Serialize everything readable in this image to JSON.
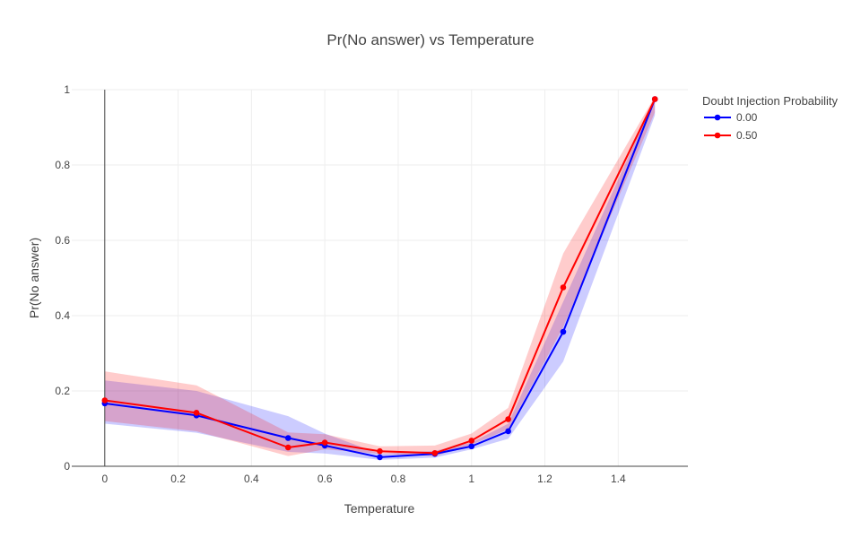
{
  "chart_data": {
    "type": "line",
    "title": "Pr(No answer) vs Temperature",
    "xlabel": "Temperature",
    "ylabel": "Pr(No answer)",
    "xlim": [
      -0.09,
      1.59
    ],
    "ylim": [
      0,
      1
    ],
    "x_ticks": [
      0,
      0.2,
      0.4,
      0.6,
      0.8,
      1,
      1.2,
      1.4
    ],
    "x_tick_labels": [
      "0",
      "0.2",
      "0.4",
      "0.6",
      "0.8",
      "1",
      "1.2",
      "1.4"
    ],
    "y_ticks": [
      0,
      0.2,
      0.4,
      0.6,
      0.8,
      1
    ],
    "y_tick_labels": [
      "0",
      "0.2",
      "0.4",
      "0.6",
      "0.8",
      "1"
    ],
    "grid": true,
    "legend": {
      "title": "Doubt Injection Probability",
      "placement": "top-right-outside"
    },
    "series": [
      {
        "name": "0.00",
        "color": "#0000ff",
        "band_color": "rgba(0,0,255,0.2)",
        "x": [
          0,
          0.25,
          0.5,
          0.6,
          0.75,
          0.9,
          1.0,
          1.1,
          1.25,
          1.5
        ],
        "y": [
          0.167,
          0.135,
          0.075,
          0.055,
          0.024,
          0.033,
          0.053,
          0.093,
          0.357,
          0.975
        ],
        "y_lower": [
          0.113,
          0.089,
          0.038,
          0.034,
          0.017,
          0.023,
          0.045,
          0.073,
          0.278,
          0.932
        ],
        "y_upper": [
          0.228,
          0.2,
          0.133,
          0.087,
          0.033,
          0.041,
          0.063,
          0.113,
          0.437,
          0.978
        ]
      },
      {
        "name": "0.50",
        "color": "#ff0000",
        "band_color": "rgba(255,0,0,0.2)",
        "x": [
          0,
          0.25,
          0.5,
          0.6,
          0.75,
          0.9,
          1.0,
          1.1,
          1.25,
          1.5
        ],
        "y": [
          0.175,
          0.142,
          0.05,
          0.063,
          0.04,
          0.035,
          0.068,
          0.125,
          0.475,
          0.975
        ],
        "y_lower": [
          0.12,
          0.093,
          0.027,
          0.045,
          0.033,
          0.027,
          0.057,
          0.098,
          0.37,
          0.94
        ],
        "y_upper": [
          0.252,
          0.215,
          0.09,
          0.085,
          0.053,
          0.055,
          0.087,
          0.155,
          0.565,
          0.982
        ]
      }
    ]
  }
}
